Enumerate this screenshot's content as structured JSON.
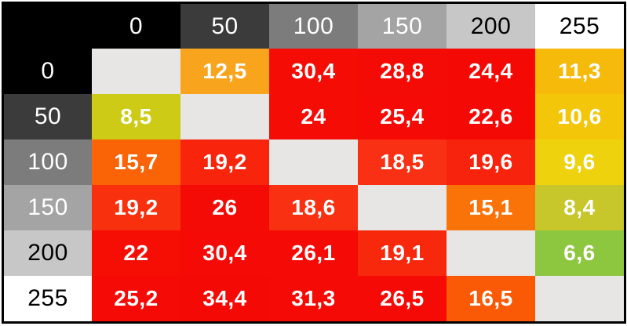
{
  "table": {
    "corner_bg": "#000000",
    "diagonal_bg": "#E7E6E4",
    "col_headers": [
      {
        "label": "0",
        "bg": "#000000",
        "fg": "#FFFFFF"
      },
      {
        "label": "50",
        "bg": "#3B3B3B",
        "fg": "#FFFFFF"
      },
      {
        "label": "100",
        "bg": "#7C7C7C",
        "fg": "#FFFFFF"
      },
      {
        "label": "150",
        "bg": "#A4A4A4",
        "fg": "#FFFFFF"
      },
      {
        "label": "200",
        "bg": "#C7C7C7",
        "fg": "#000000"
      },
      {
        "label": "255",
        "bg": "#FFFFFF",
        "fg": "#000000"
      }
    ],
    "row_headers": [
      {
        "label": "0",
        "bg": "#000000",
        "fg": "#FFFFFF"
      },
      {
        "label": "50",
        "bg": "#3B3B3B",
        "fg": "#FFFFFF"
      },
      {
        "label": "100",
        "bg": "#7C7C7C",
        "fg": "#FFFFFF"
      },
      {
        "label": "150",
        "bg": "#A4A4A4",
        "fg": "#FFFFFF"
      },
      {
        "label": "200",
        "bg": "#C7C7C7",
        "fg": "#000000"
      },
      {
        "label": "255",
        "bg": "#FFFFFF",
        "fg": "#000000"
      }
    ],
    "rows": [
      {
        "cells": [
          {
            "value": "",
            "bg": "#E7E6E4",
            "fg": "#FFFFFF"
          },
          {
            "value": "12,5",
            "bg": "#F9A41D",
            "fg": "#FFFFFF"
          },
          {
            "value": "30,4",
            "bg": "#F50D05",
            "fg": "#FFFFFF"
          },
          {
            "value": "28,8",
            "bg": "#F50B05",
            "fg": "#FFFFFF"
          },
          {
            "value": "24,4",
            "bg": "#F50905",
            "fg": "#FFFFFF"
          },
          {
            "value": "11,3",
            "bg": "#F6BA0B",
            "fg": "#FFFFFF"
          }
        ]
      },
      {
        "cells": [
          {
            "value": "8,5",
            "bg": "#CDCB15",
            "fg": "#FFFFFF"
          },
          {
            "value": "",
            "bg": "#E7E6E4",
            "fg": "#FFFFFF"
          },
          {
            "value": "24",
            "bg": "#F50C05",
            "fg": "#FFFFFF"
          },
          {
            "value": "25,4",
            "bg": "#F50A05",
            "fg": "#FFFFFF"
          },
          {
            "value": "22,6",
            "bg": "#F50905",
            "fg": "#FFFFFF"
          },
          {
            "value": "10,6",
            "bg": "#F4C609",
            "fg": "#FFFFFF"
          }
        ]
      },
      {
        "cells": [
          {
            "value": "15,7",
            "bg": "#FA6306",
            "fg": "#FFFFFF"
          },
          {
            "value": "19,2",
            "bg": "#F8240B",
            "fg": "#FFFFFF"
          },
          {
            "value": "",
            "bg": "#E7E6E4",
            "fg": "#FFFFFF"
          },
          {
            "value": "18,5",
            "bg": "#F93013",
            "fg": "#FFFFFF"
          },
          {
            "value": "19,6",
            "bg": "#F8230C",
            "fg": "#FFFFFF"
          },
          {
            "value": "9,6",
            "bg": "#EDD20D",
            "fg": "#FFFFFF"
          }
        ]
      },
      {
        "cells": [
          {
            "value": "19,2",
            "bg": "#F8300E",
            "fg": "#FFFFFF"
          },
          {
            "value": "26",
            "bg": "#F50B05",
            "fg": "#FFFFFF"
          },
          {
            "value": "18,6",
            "bg": "#F93011",
            "fg": "#FFFFFF"
          },
          {
            "value": "",
            "bg": "#E7E6E4",
            "fg": "#FFFFFF"
          },
          {
            "value": "15,1",
            "bg": "#FA7309",
            "fg": "#FFFFFF"
          },
          {
            "value": "8,4",
            "bg": "#C7C62B",
            "fg": "#FFFFFF"
          }
        ]
      },
      {
        "cells": [
          {
            "value": "22",
            "bg": "#F60E05",
            "fg": "#FFFFFF"
          },
          {
            "value": "30,4",
            "bg": "#F50A05",
            "fg": "#FFFFFF"
          },
          {
            "value": "26,1",
            "bg": "#F50A05",
            "fg": "#FFFFFF"
          },
          {
            "value": "19,1",
            "bg": "#F8280D",
            "fg": "#FFFFFF"
          },
          {
            "value": "",
            "bg": "#E7E6E4",
            "fg": "#FFFFFF"
          },
          {
            "value": "6,6",
            "bg": "#8DC63F",
            "fg": "#FFFFFF"
          }
        ]
      },
      {
        "cells": [
          {
            "value": "25,2",
            "bg": "#F50A05",
            "fg": "#FFFFFF"
          },
          {
            "value": "34,4",
            "bg": "#F50905",
            "fg": "#FFFFFF"
          },
          {
            "value": "31,3",
            "bg": "#F50A05",
            "fg": "#FFFFFF"
          },
          {
            "value": "26,5",
            "bg": "#F50A05",
            "fg": "#FFFFFF"
          },
          {
            "value": "16,5",
            "bg": "#FA5A05",
            "fg": "#FFFFFF"
          },
          {
            "value": "",
            "bg": "#E7E6E4",
            "fg": "#FFFFFF"
          }
        ]
      }
    ]
  },
  "chart_data": {
    "type": "heatmap",
    "title": "",
    "x_categories": [
      "0",
      "50",
      "100",
      "150",
      "200",
      "255"
    ],
    "y_categories": [
      "0",
      "50",
      "100",
      "150",
      "200",
      "255"
    ],
    "values": [
      [
        null,
        12.5,
        30.4,
        28.8,
        24.4,
        11.3
      ],
      [
        8.5,
        null,
        24.0,
        25.4,
        22.6,
        10.6
      ],
      [
        15.7,
        19.2,
        null,
        18.5,
        19.6,
        9.6
      ],
      [
        19.2,
        26.0,
        18.6,
        null,
        15.1,
        8.4
      ],
      [
        22.0,
        30.4,
        26.1,
        19.1,
        null,
        6.6
      ],
      [
        25.2,
        34.4,
        31.3,
        26.5,
        16.5,
        null
      ]
    ],
    "decimal_separator": ",",
    "diagonal": "empty",
    "color_scale": {
      "low_color": "#8DC63F",
      "mid_colors": [
        "#CDCB15",
        "#EDD20D",
        "#F4C609",
        "#F9A41D",
        "#FA6306"
      ],
      "high_color": "#F50905",
      "low_value": 6.6,
      "high_value": 34.4
    },
    "header_style": "grayscale swatches 0 (black) to 255 (white)"
  }
}
